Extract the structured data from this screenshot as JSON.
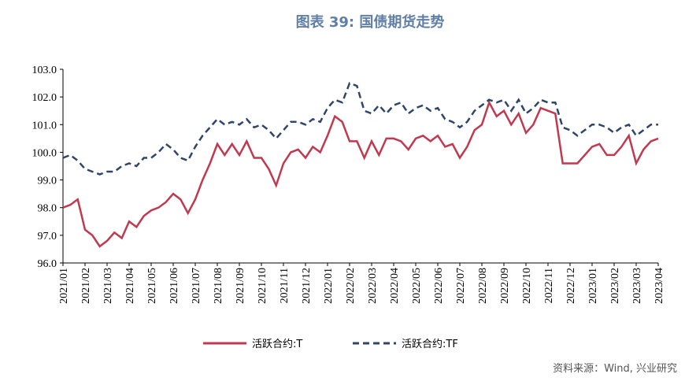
{
  "chart_data": {
    "type": "line",
    "title": "图表 39: 国债期货走势",
    "source": "资料来源：Wind, 兴业研究",
    "categories": [
      "2021/01",
      null,
      null,
      "2021/02",
      null,
      null,
      "2021/03",
      null,
      null,
      "2021/04",
      null,
      null,
      "2021/05",
      null,
      null,
      "2021/06",
      null,
      null,
      "2021/07",
      null,
      null,
      "2021/08",
      null,
      null,
      "2021/09",
      null,
      null,
      "2021/10",
      null,
      null,
      "2021/11",
      null,
      null,
      "2021/12",
      null,
      null,
      "2022/01",
      null,
      null,
      "2022/02",
      null,
      null,
      "2022/03",
      null,
      null,
      "2022/04",
      null,
      null,
      "2022/05",
      null,
      null,
      "2022/06",
      null,
      null,
      "2022/07",
      null,
      null,
      "2022/08",
      null,
      null,
      "2022/09",
      null,
      null,
      "2022/10",
      null,
      null,
      "2022/11",
      null,
      null,
      "2022/12",
      null,
      null,
      "2023/01",
      null,
      null,
      "2023/02",
      null,
      null,
      "2023/03",
      null,
      null,
      "2023/04"
    ],
    "series": [
      {
        "name": "活跃合约:T",
        "color": "#c0394f",
        "dash": false,
        "values": [
          98.0,
          98.1,
          98.3,
          97.2,
          97.0,
          96.6,
          96.8,
          97.1,
          96.9,
          97.5,
          97.3,
          97.7,
          97.9,
          98.0,
          98.2,
          98.5,
          98.3,
          97.8,
          98.3,
          99.0,
          99.6,
          100.3,
          99.9,
          100.3,
          99.9,
          100.4,
          99.8,
          99.8,
          99.4,
          98.8,
          99.6,
          100.0,
          100.1,
          99.8,
          100.2,
          100.0,
          100.6,
          101.3,
          101.1,
          100.4,
          100.4,
          99.8,
          100.4,
          99.9,
          100.5,
          100.5,
          100.4,
          100.1,
          100.5,
          100.6,
          100.4,
          100.6,
          100.2,
          100.3,
          99.8,
          100.2,
          100.8,
          101.0,
          101.8,
          101.3,
          101.5,
          101.0,
          101.4,
          100.7,
          101.0,
          101.6,
          101.5,
          101.4,
          99.6,
          99.6,
          99.6,
          99.9,
          100.2,
          100.3,
          99.9,
          99.9,
          100.2,
          100.6,
          99.6,
          100.1,
          100.4,
          100.5
        ]
      },
      {
        "name": "活跃合约:TF",
        "color": "#2f4669",
        "dash": true,
        "values": [
          99.8,
          99.9,
          99.7,
          99.4,
          99.3,
          99.2,
          99.3,
          99.3,
          99.5,
          99.6,
          99.5,
          99.8,
          99.8,
          100.0,
          100.3,
          100.1,
          99.8,
          99.7,
          100.2,
          100.6,
          100.9,
          101.2,
          101.0,
          101.1,
          101.0,
          101.2,
          100.9,
          101.0,
          100.8,
          100.5,
          100.8,
          101.1,
          101.1,
          101.0,
          101.2,
          101.1,
          101.6,
          101.9,
          101.8,
          102.5,
          102.4,
          101.5,
          101.4,
          101.7,
          101.4,
          101.7,
          101.8,
          101.4,
          101.6,
          101.7,
          101.5,
          101.6,
          101.2,
          101.1,
          100.9,
          101.1,
          101.5,
          101.7,
          101.9,
          101.8,
          101.9,
          101.5,
          101.9,
          101.4,
          101.6,
          101.9,
          101.8,
          101.8,
          100.9,
          100.8,
          100.6,
          100.8,
          101.0,
          101.0,
          100.9,
          100.7,
          100.9,
          101.0,
          100.6,
          100.8,
          101.0,
          101.0
        ]
      }
    ],
    "ylim": [
      96,
      103
    ],
    "yticks": [
      {
        "value": 96,
        "label": "96.0"
      },
      {
        "value": 97,
        "label": "97.0"
      },
      {
        "value": 98,
        "label": "98.0"
      },
      {
        "value": 99,
        "label": "99.0"
      },
      {
        "value": 100,
        "label": "100.0"
      },
      {
        "value": 101,
        "label": "101.0"
      },
      {
        "value": 102,
        "label": "102.0"
      },
      {
        "value": 103,
        "label": "103.0"
      }
    ],
    "grid": false
  }
}
